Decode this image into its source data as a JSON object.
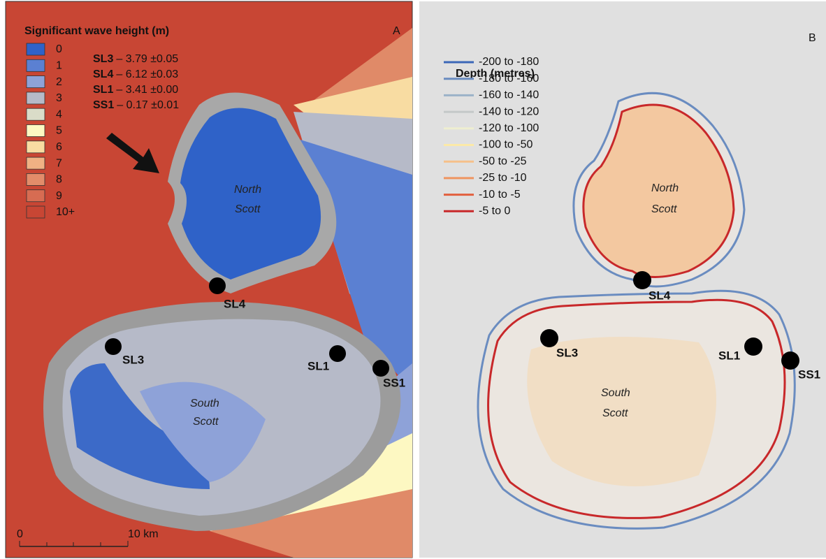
{
  "panel_a": {
    "title": "Significant wave height (m)",
    "letter": "A",
    "legend": [
      {
        "label": "0",
        "color": "#2f62c8"
      },
      {
        "label": "1",
        "color": "#5b80d2"
      },
      {
        "label": "2",
        "color": "#8ea2d8"
      },
      {
        "label": "3",
        "color": "#b6bac8"
      },
      {
        "label": "4",
        "color": "#dadcc8"
      },
      {
        "label": "5",
        "color": "#fdf8c2"
      },
      {
        "label": "6",
        "color": "#f8dca2"
      },
      {
        "label": "7",
        "color": "#f0b184"
      },
      {
        "label": "8",
        "color": "#e38c6a"
      },
      {
        "label": "9",
        "color": "#d76c52"
      },
      {
        "label": "10+",
        "color": "#c84634"
      }
    ],
    "stats": [
      {
        "site": "SL3",
        "value": "– 3.79 ±0.05"
      },
      {
        "site": "SL4",
        "value": "– 6.12 ±0.03"
      },
      {
        "site": "SL1",
        "value": "– 3.41 ±0.00"
      },
      {
        "site": "SS1",
        "value": "– 0.17 ±0.01"
      }
    ],
    "north_label": [
      "North",
      "Scott"
    ],
    "south_label": [
      "South",
      "Scott"
    ],
    "sites": [
      "SL4",
      "SL3",
      "SL1",
      "SS1"
    ],
    "scale": [
      "0",
      "10 km"
    ]
  },
  "panel_b": {
    "title": "Depth (metres)",
    "letter": "B",
    "legend": [
      {
        "label": "-200 to -180",
        "color": "#3b67b8"
      },
      {
        "label": "-180 to -160",
        "color": "#6a8cc0"
      },
      {
        "label": "-160 to -140",
        "color": "#9bb2c8"
      },
      {
        "label": "-140 to -120",
        "color": "#c4c8c8"
      },
      {
        "label": "-120 to -100",
        "color": "#eeeed0"
      },
      {
        "label": "-100 to -50",
        "color": "#fbe9a8"
      },
      {
        "label": "-50 to -25",
        "color": "#f6c08a"
      },
      {
        "label": "-25 to -10",
        "color": "#ef9560"
      },
      {
        "label": "-10 to -5",
        "color": "#e2603e"
      },
      {
        "label": "-5 to 0",
        "color": "#c8282a"
      }
    ],
    "north_label": [
      "North",
      "Scott"
    ],
    "south_label": [
      "South",
      "Scott"
    ],
    "sites": [
      "SL4",
      "SL3",
      "SL1",
      "SS1"
    ]
  }
}
